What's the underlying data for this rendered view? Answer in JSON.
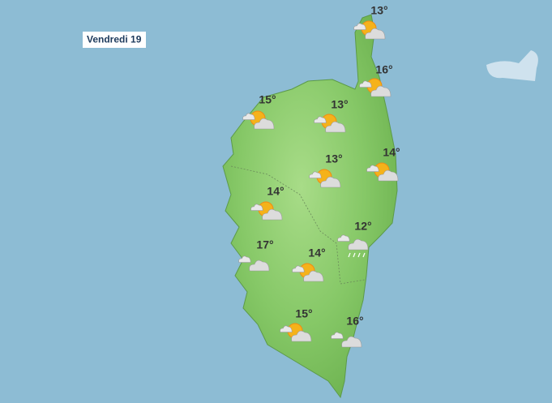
{
  "header": {
    "day": "Vendredi 19"
  },
  "stations": [
    {
      "temperature": "13°"
    },
    {
      "temperature": "16°"
    },
    {
      "temperature": "15°"
    },
    {
      "temperature": "13°"
    },
    {
      "temperature": "13°"
    },
    {
      "temperature": "14°"
    },
    {
      "temperature": "14°"
    },
    {
      "temperature": "12°"
    },
    {
      "temperature": "17°"
    },
    {
      "temperature": "14°"
    },
    {
      "temperature": "15°"
    },
    {
      "temperature": "16°"
    }
  ]
}
